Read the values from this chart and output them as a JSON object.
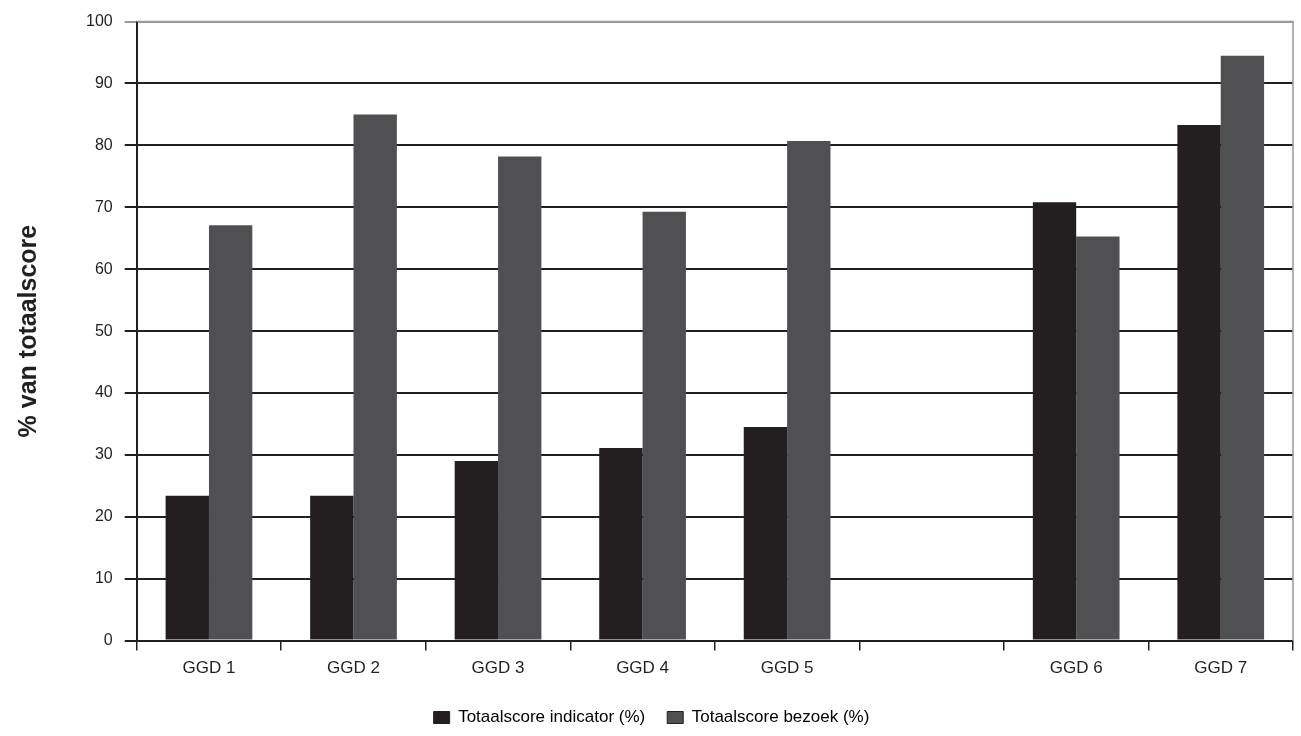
{
  "chart_data": {
    "type": "bar",
    "ylabel": "% van totaalscore",
    "categories": [
      "GGD 1",
      "GGD 2",
      "GGD 3",
      "GGD 4",
      "GGD 5",
      null,
      "GGD 6",
      "GGD 7"
    ],
    "series": [
      {
        "name": "Totaalscore indicator (%)",
        "color": "#231f20",
        "values": [
          23.4,
          23.4,
          29.0,
          31.1,
          34.5,
          null,
          70.8,
          83.3
        ]
      },
      {
        "name": "Totaalscore bezoek (%)",
        "color": "#505052",
        "values": [
          67.1,
          85.0,
          78.2,
          69.3,
          80.7,
          null,
          65.3,
          94.5
        ]
      }
    ],
    "ylim": [
      0,
      100
    ],
    "yticks": [
      0,
      10,
      20,
      30,
      40,
      50,
      60,
      70,
      80,
      90,
      100
    ],
    "grid": "y",
    "legend": "bottom"
  }
}
